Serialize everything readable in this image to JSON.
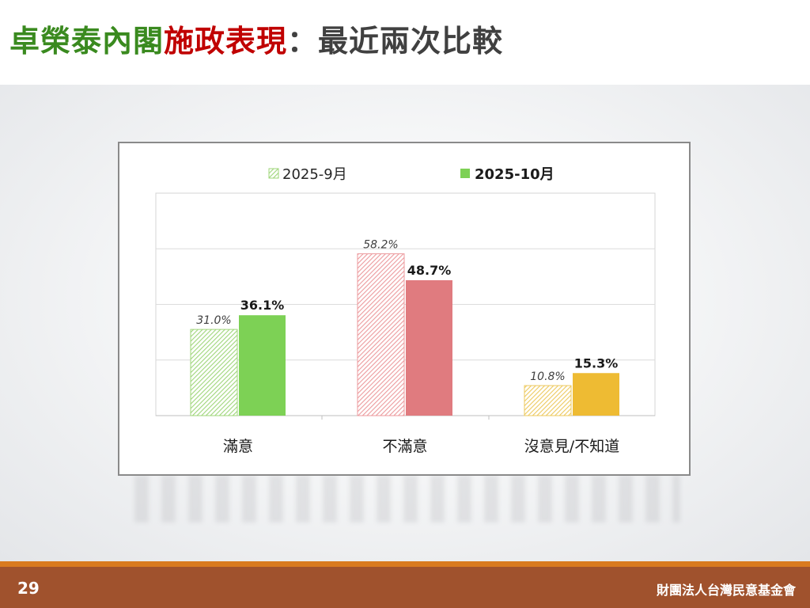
{
  "slide": {
    "title_part1": "卓榮泰內閣",
    "title_part2": "施政表現",
    "title_part3": "：最近兩次比較",
    "page_number": "29",
    "organization": "財團法人台灣民意基金會"
  },
  "colors": {
    "title_green": "#3a8a1f",
    "title_red": "#c00000",
    "title_gray": "#404040",
    "satisfied_light": "#9fd67a",
    "satisfied": "#7dd155",
    "dissatisfied_light": "#ec9a9d",
    "dissatisfied": "#e07b7f",
    "no_opinion_light": "#edc95e",
    "no_opinion": "#eebb33"
  },
  "chart_data": {
    "type": "bar",
    "categories": [
      "滿意",
      "不滿意",
      "沒意見/不知道"
    ],
    "series": [
      {
        "name": "2025-9月",
        "values": [
          31.0,
          58.2,
          10.8
        ],
        "labels": [
          "31.0%",
          "58.2%",
          "10.8%"
        ],
        "style": "hatched"
      },
      {
        "name": "2025-10月",
        "values": [
          36.1,
          48.7,
          15.3
        ],
        "labels": [
          "36.1%",
          "48.7%",
          "15.3%"
        ],
        "style": "solid"
      }
    ],
    "ylim": [
      0,
      80
    ],
    "grid": true,
    "legend": "top"
  }
}
